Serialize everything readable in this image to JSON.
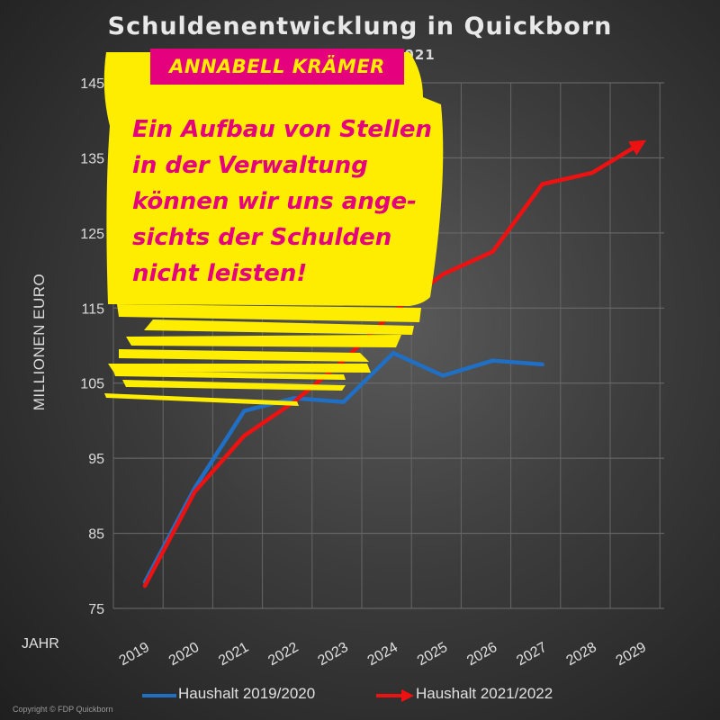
{
  "header": {
    "title": "Schuldenentwicklung in Quickborn",
    "subtitle": "2021"
  },
  "note": {
    "name": "ANNABELL KRÄMER",
    "lines": [
      "Ein Aufbau von Stellen",
      "in der Verwaltung",
      "können wir uns ange-",
      "sichts der Schulden",
      "nicht leisten!"
    ],
    "colors": {
      "highlight": "#ffed00",
      "magenta": "#e5007d"
    }
  },
  "chart_data": {
    "type": "line",
    "title": "Schuldenentwicklung in Quickborn",
    "xlabel": "JAHR",
    "ylabel": "MILLIONEN EURO",
    "categories": [
      "2019",
      "2020",
      "2021",
      "2022",
      "2023",
      "2024",
      "2025",
      "2026",
      "2027",
      "2028",
      "2029"
    ],
    "yticks": [
      75,
      85,
      95,
      105,
      115,
      125,
      135,
      145
    ],
    "ylim": [
      75,
      145
    ],
    "grid": true,
    "legend_position": "bottom",
    "series": [
      {
        "name": "Haushalt 2019/2020",
        "color": "#1f6fc5",
        "values": [
          78.5,
          91,
          101.3,
          103,
          102.5,
          109,
          106,
          108,
          107.5,
          null,
          null
        ]
      },
      {
        "name": "Haushalt 2021/2022",
        "color": "#ee1111",
        "arrow": true,
        "values": [
          78,
          90.5,
          98,
          102.5,
          108,
          114.5,
          119.5,
          122.5,
          131.5,
          133,
          137
        ]
      }
    ]
  },
  "footer": {
    "copyright": "Copyright © FDP Quickborn"
  }
}
